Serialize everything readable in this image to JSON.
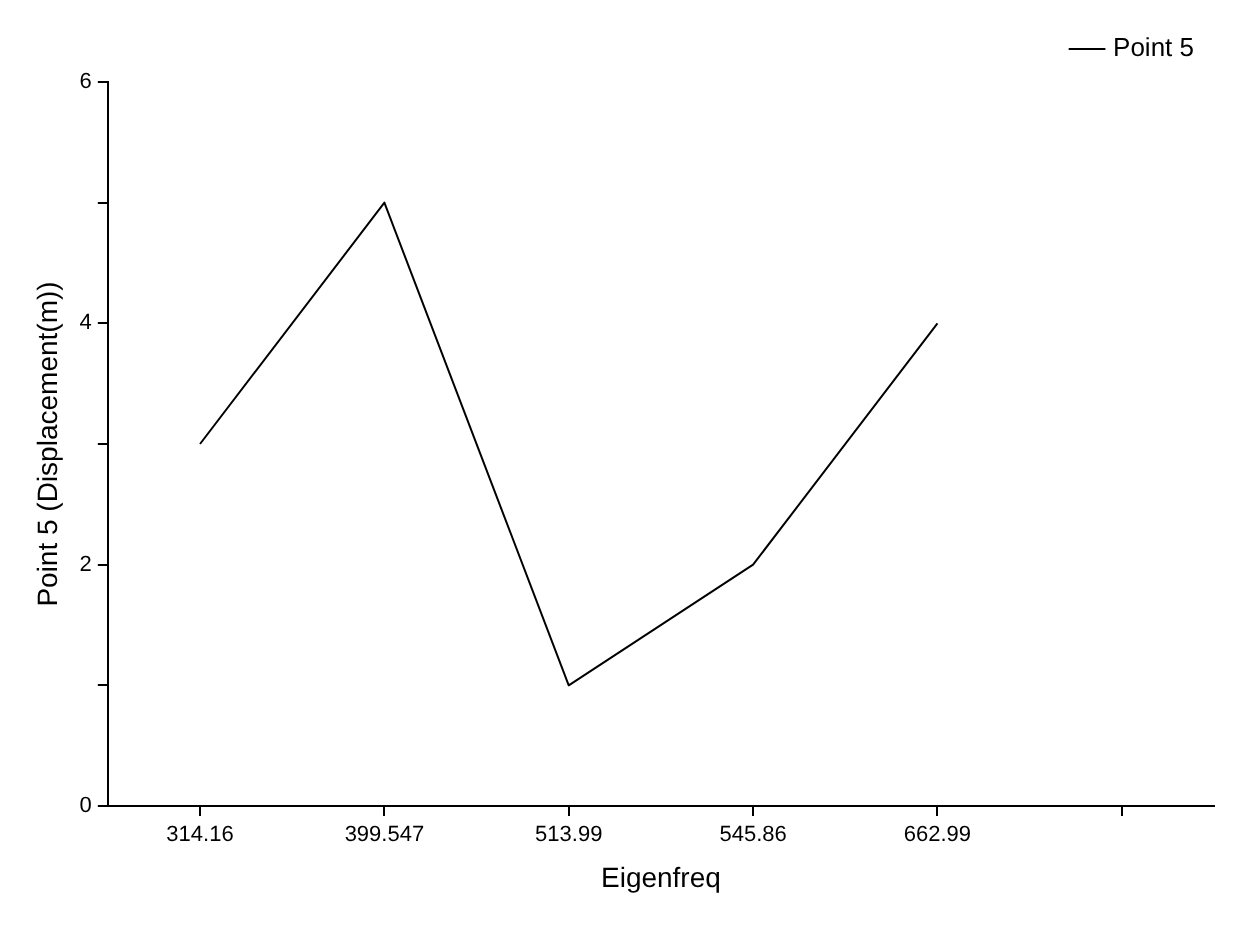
{
  "chart_data": {
    "type": "line",
    "xlabel": "Eigenfreq",
    "ylabel": "Point 5 (Displacement(m))",
    "categories": [
      "314.16",
      "399.547",
      "513.99",
      "545.86",
      "662.99",
      null
    ],
    "series": [
      {
        "name": "Point 5",
        "color": "#000000",
        "values": [
          3,
          5,
          1,
          2,
          4,
          null
        ]
      }
    ],
    "ylim": [
      0,
      6
    ],
    "yticks": [
      0,
      {
        "value": 1,
        "label": null
      },
      2,
      {
        "value": 3,
        "label": null
      },
      4,
      {
        "value": 5,
        "label": null
      },
      6
    ],
    "grid": false,
    "legend": "top right",
    "marker": "none",
    "line_style": "solid"
  }
}
